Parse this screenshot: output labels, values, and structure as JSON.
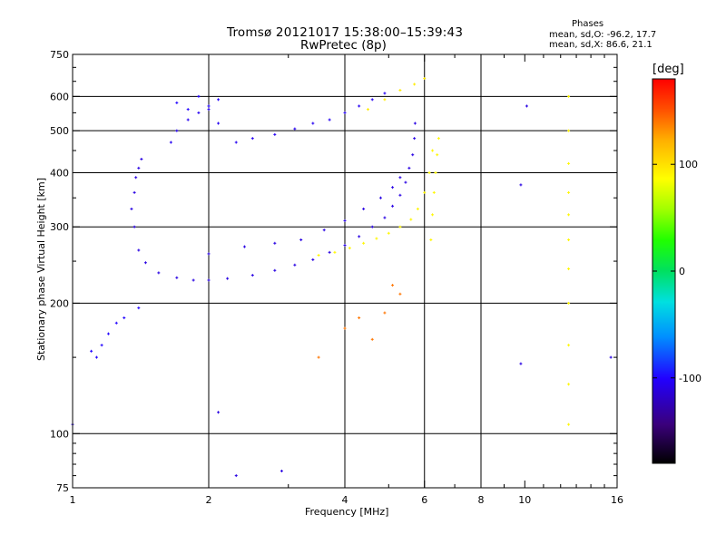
{
  "header": {
    "title_line1": "Tromsø 20121017 15:38:00–15:39:43",
    "title_line2": "RwPretec (8p)",
    "phases_heading": "Phases",
    "phases_o": "mean, sd,O: -96.2, 17.7",
    "phases_x": "mean, sd,X:  86.6, 21.1"
  },
  "colorbar": {
    "unit_label": "[deg]",
    "range": [
      -180,
      180
    ],
    "ticks": [
      100,
      0,
      -100
    ],
    "colors": [
      "#000000",
      "#3a007a",
      "#2200ff",
      "#0090ff",
      "#00e0e0",
      "#00e060",
      "#20ff00",
      "#a0ff00",
      "#ffff00",
      "#ffb000",
      "#ff5000",
      "#ff0000"
    ]
  },
  "chart_data": {
    "type": "scatter",
    "title": "Tromsø 20121017 15:38:00–15:39:43",
    "subtitle": "RwPretec (8p)",
    "xlabel": "Frequency [MHz]",
    "ylabel": "Stationary phase Virtual Height [km]",
    "xscale": "log",
    "yscale": "log",
    "xlim": [
      1,
      16
    ],
    "ylim": [
      75,
      750
    ],
    "xticks": [
      1,
      2,
      4,
      6,
      8,
      10,
      16
    ],
    "xtick_labels": [
      "1",
      "2",
      "4",
      "6",
      "8",
      "10",
      "16"
    ],
    "xgrid": [
      2,
      4,
      6,
      8
    ],
    "yticks": [
      75,
      100,
      200,
      300,
      400,
      500,
      600,
      750
    ],
    "ytick_labels": [
      "75",
      "100",
      "200",
      "300",
      "400",
      "500",
      "600",
      "750"
    ],
    "ygrid": [
      100,
      200,
      300,
      400,
      500,
      600
    ],
    "grid": true,
    "color_encoding": "phase [deg]",
    "series": [
      {
        "trace": "o-mode-lower-layer",
        "phase": -110,
        "x": [
          1.37,
          1.4,
          1.45,
          1.55,
          1.7,
          1.85,
          2.0,
          2.2,
          2.5,
          2.8,
          3.1,
          3.4,
          3.7,
          4.0,
          4.3,
          4.6,
          4.9,
          5.1,
          5.3,
          5.45,
          5.55,
          5.65,
          5.7,
          5.72
        ],
        "y": [
          300,
          265,
          248,
          235,
          229,
          226,
          226,
          228,
          232,
          238,
          245,
          252,
          262,
          272,
          285,
          300,
          315,
          335,
          355,
          380,
          410,
          440,
          480,
          520
        ]
      },
      {
        "trace": "o-mode-cusp-branch",
        "phase": -110,
        "x": [
          1.35,
          1.37,
          1.38,
          1.4,
          1.42
        ],
        "y": [
          330,
          360,
          390,
          410,
          430
        ]
      },
      {
        "trace": "o-mode-upper-layer",
        "phase": -105,
        "x": [
          1.65,
          1.7,
          1.8,
          1.9,
          2.0,
          2.1,
          2.3,
          2.5,
          2.8,
          3.1,
          3.4,
          3.7,
          4.0,
          4.3,
          4.6,
          4.9
        ],
        "y": [
          470,
          500,
          530,
          550,
          560,
          520,
          470,
          480,
          490,
          505,
          520,
          530,
          550,
          570,
          590,
          610
        ]
      },
      {
        "trace": "o-mode-upper-cusp",
        "phase": -100,
        "x": [
          1.7,
          1.8,
          1.9,
          2.0,
          2.1
        ],
        "y": [
          580,
          560,
          600,
          570,
          590
        ]
      },
      {
        "trace": "o-mode-mid-cluster",
        "phase": -110,
        "x": [
          2.0,
          2.4,
          2.8,
          3.2,
          3.6,
          4.0,
          4.4,
          4.8,
          5.1,
          5.3
        ],
        "y": [
          260,
          270,
          275,
          280,
          295,
          310,
          330,
          350,
          370,
          390
        ]
      },
      {
        "trace": "x-mode",
        "phase": 90,
        "x": [
          3.5,
          3.8,
          4.1,
          4.4,
          4.7,
          5.0,
          5.3,
          5.6,
          5.8,
          6.0,
          6.15,
          6.25
        ],
        "y": [
          258,
          262,
          268,
          275,
          282,
          290,
          300,
          312,
          330,
          360,
          400,
          450
        ]
      },
      {
        "trace": "x-mode-upper",
        "phase": 95,
        "x": [
          4.5,
          4.9,
          5.3,
          5.7,
          6.0
        ],
        "y": [
          560,
          590,
          620,
          640,
          660
        ]
      },
      {
        "trace": "x-mode-vertical",
        "phase": 90,
        "x": [
          6.2,
          6.25,
          6.3,
          6.35,
          6.4,
          6.45
        ],
        "y": [
          280,
          320,
          360,
          400,
          440,
          480
        ]
      },
      {
        "trace": "low-frequency-echo",
        "phase": -100,
        "x": [
          1.1,
          1.13,
          1.16,
          1.2,
          1.25,
          1.3,
          1.4
        ],
        "y": [
          155,
          150,
          160,
          170,
          180,
          185,
          195
        ]
      },
      {
        "trace": "sporadic-spread",
        "phase": 140,
        "x": [
          3.5,
          4.0,
          4.3,
          4.6,
          4.9,
          5.1,
          5.3
        ],
        "y": [
          150,
          175,
          185,
          165,
          190,
          220,
          210
        ]
      },
      {
        "trace": "interference-12.5MHz",
        "phase": 90,
        "x": [
          12.5,
          12.5,
          12.5,
          12.5,
          12.5,
          12.5,
          12.5,
          12.5,
          12.5,
          12.5,
          12.5
        ],
        "y": [
          105,
          130,
          160,
          200,
          240,
          280,
          320,
          360,
          420,
          500,
          600
        ]
      },
      {
        "trace": "isolated-echoes",
        "phase": -110,
        "x": [
          1.0,
          2.1,
          2.3,
          2.9,
          9.8,
          9.8,
          10.1,
          15.5
        ],
        "y": [
          105,
          112,
          80,
          82,
          375,
          145,
          570,
          150
        ]
      }
    ]
  }
}
